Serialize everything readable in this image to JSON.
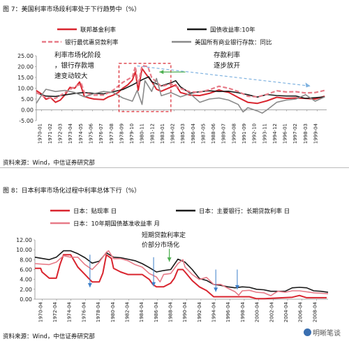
{
  "figure1": {
    "caption": "图 7：美国利率市场段利率处于下行趋势中（%）",
    "source": "资料来源：Wind，中信证券研究部",
    "chart_data": {
      "type": "line",
      "ylim": [
        -5,
        25
      ],
      "yticks": [
        "25.00",
        "20.00",
        "15.00",
        "10.00",
        "5.00",
        "0.00",
        "-5.00"
      ],
      "ytick_values": [
        25,
        20,
        15,
        10,
        5,
        0,
        -5
      ],
      "xlim": [
        1970.0,
        2000.2
      ],
      "xtick_labels": [
        "1970-01",
        "1971-02",
        "1972-03",
        "1973-04",
        "1974-05",
        "1975-06",
        "1976-07",
        "1977-08",
        "1978-09",
        "1979-10",
        "1980-11",
        "1981-12",
        "1983-01",
        "1984-02",
        "1985-03",
        "1986-04",
        "1987-05",
        "1988-06",
        "1989-07",
        "1990-08",
        "1991-09",
        "1992-10",
        "1993-11",
        "1994-12",
        "1996-01",
        "1997-02",
        "1998-03",
        "1999-04"
      ],
      "legend": [
        "联邦基金利率",
        "国债收益率:10年",
        "银行最优惠贷款利率",
        "美国所有商业银行存款：同比"
      ],
      "series": [
        {
          "name": "联邦基金利率",
          "color": "#d9252f",
          "style": "solid",
          "x": [
            1970,
            1970.5,
            1971,
            1971.5,
            1972,
            1972.5,
            1973,
            1973.5,
            1974,
            1974.5,
            1975,
            1975.5,
            1976,
            1977,
            1977.5,
            1978,
            1978.5,
            1979,
            1979.5,
            1980,
            1980.3,
            1980.6,
            1981,
            1981.5,
            1982,
            1982.5,
            1983,
            1984,
            1984.5,
            1985,
            1986,
            1987,
            1988,
            1989,
            1989.5,
            1990,
            1991,
            1992,
            1993,
            1994,
            1995,
            1996,
            1997,
            1998,
            1999,
            2000
          ],
          "y": [
            8.9,
            7.5,
            4.9,
            5.6,
            3.5,
            4.5,
            7.0,
            10.4,
            10.0,
            12.9,
            6.2,
            5.5,
            5.0,
            4.7,
            6.0,
            6.8,
            8.0,
            10.0,
            11.5,
            13.8,
            17.6,
            9.0,
            19.1,
            16.0,
            13.2,
            9.5,
            8.6,
            10.5,
            11.5,
            8.0,
            6.8,
            6.6,
            7.6,
            9.2,
            8.5,
            8.1,
            5.7,
            3.5,
            3.0,
            4.2,
            5.8,
            5.3,
            5.5,
            5.3,
            5.0,
            6.3
          ]
        },
        {
          "name": "国债收益率:10年",
          "color": "#1a1a1a",
          "style": "solid",
          "x": [
            1970,
            1971,
            1972,
            1973,
            1974,
            1975,
            1976,
            1977,
            1978,
            1979,
            1980,
            1981,
            1981.7,
            1982,
            1983,
            1984,
            1984.5,
            1985,
            1986,
            1987,
            1988,
            1989,
            1990,
            1991,
            1992,
            1993,
            1994,
            1995,
            1996,
            1997,
            1998,
            1999,
            2000
          ],
          "y": [
            7.8,
            6.4,
            6.2,
            6.9,
            7.6,
            8.0,
            7.6,
            7.4,
            8.4,
            9.4,
            11.5,
            13.9,
            15.3,
            13.0,
            11.1,
            12.5,
            13.5,
            10.6,
            7.7,
            8.4,
            8.8,
            8.5,
            8.6,
            7.9,
            7.0,
            5.9,
            7.1,
            6.6,
            6.4,
            6.4,
            5.3,
            5.6,
            6.0
          ]
        },
        {
          "name": "银行最优惠贷款利率",
          "color": "#e77b88",
          "style": "dash",
          "x": [
            1970,
            1971,
            1972,
            1973,
            1974,
            1974.7,
            1975,
            1976,
            1977,
            1978,
            1979,
            1980,
            1980.3,
            1980.6,
            1981,
            1981.6,
            1982,
            1983,
            1984,
            1985,
            1986,
            1987,
            1988,
            1989,
            1990,
            1991,
            1992,
            1993,
            1994,
            1995,
            1996,
            1997,
            1998,
            1999,
            2000
          ],
          "y": [
            8.0,
            5.7,
            5.3,
            8.0,
            10.8,
            12.0,
            7.9,
            6.8,
            6.8,
            9.1,
            12.7,
            15.3,
            20.0,
            11.5,
            20.5,
            20.0,
            14.9,
            10.8,
            12.0,
            9.9,
            8.3,
            8.2,
            9.3,
            10.9,
            10.0,
            8.5,
            6.3,
            6.0,
            7.2,
            8.8,
            8.3,
            8.4,
            7.8,
            8.0,
            9.0
          ]
        },
        {
          "name": "美国所有商业银行存款：同比",
          "color": "#8a8a8a",
          "style": "solid",
          "x": [
            1970,
            1970.5,
            1971,
            1972,
            1973,
            1974,
            1975,
            1976,
            1977,
            1978,
            1979,
            1980,
            1980.5,
            1981,
            1981.3,
            1982,
            1982.5,
            1983,
            1984,
            1985,
            1986,
            1987,
            1988,
            1989,
            1990,
            1991,
            1991.5,
            1992,
            1993,
            1993.5,
            1994,
            1995,
            1996,
            1997,
            1998,
            1999,
            2000
          ],
          "y": [
            3.0,
            6.5,
            9.5,
            8.5,
            9.0,
            8.0,
            6.0,
            7.5,
            8.5,
            8.0,
            5.5,
            4.0,
            9.0,
            2.5,
            13.5,
            8.5,
            14.5,
            6.5,
            8.0,
            6.0,
            7.5,
            3.5,
            5.0,
            5.5,
            4.5,
            2.5,
            -1.0,
            1.0,
            -0.5,
            -1.5,
            0.0,
            3.5,
            4.5,
            5.0,
            7.0,
            4.0,
            6.0
          ]
        }
      ],
      "annotations": [
        "利率市场化阶段，银行存款增速变动较大",
        "存款利率逐步放开"
      ]
    }
  },
  "figure2": {
    "caption": "图 8：日本利率市场化过程中利率总体下行（%）",
    "source": "资料来源：Wind，中信证券研究部",
    "chart_data": {
      "type": "line",
      "ylim": [
        0,
        12
      ],
      "yticks": [
        "12.00",
        "10.00",
        "8.00",
        "6.00",
        "4.00",
        "2.00",
        "0.00"
      ],
      "ytick_values": [
        12,
        10,
        8,
        6,
        4,
        2,
        0
      ],
      "xlim": [
        1970.0,
        2011.0
      ],
      "xtick_labels": [
        "1970-04",
        "1972-04",
        "1974-04",
        "1976-04",
        "1978-04",
        "1980-04",
        "1982-04",
        "1984-04",
        "1986-04",
        "1988-04",
        "1990-04",
        "1992-04",
        "1994-04",
        "1996-04",
        "1998-04",
        "2000-04",
        "2002-04",
        "2004-04",
        "2006-04",
        "2008-04"
      ],
      "legend": [
        "日本：贴现率 日",
        "日本：主要银行：长期贷款利率 日",
        "日本：10年期国债基准收益率 月"
      ],
      "series": [
        {
          "name": "日本：贴现率 日",
          "color": "#d9252f",
          "style": "solid",
          "x": [
            1970,
            1970.8,
            1971,
            1972,
            1973,
            1973.5,
            1974,
            1975,
            1975.8,
            1976,
            1977,
            1977.5,
            1978,
            1979,
            1979.5,
            1980,
            1980.7,
            1981,
            1982,
            1983,
            1984,
            1985,
            1986,
            1986.5,
            1987,
            1988,
            1989,
            1989.5,
            1990,
            1990.7,
            1991,
            1992,
            1993,
            1994,
            1995,
            1996,
            2000,
            2001,
            2002,
            2006,
            2007,
            2008,
            2009,
            2010.8
          ],
          "y": [
            6.25,
            6.25,
            5.5,
            4.25,
            4.25,
            7.0,
            9.0,
            9.0,
            7.0,
            6.5,
            5.0,
            4.25,
            3.5,
            3.5,
            5.25,
            9.0,
            8.25,
            6.25,
            5.5,
            5.0,
            5.0,
            5.0,
            4.0,
            3.0,
            2.5,
            2.5,
            3.25,
            4.25,
            6.0,
            6.0,
            5.5,
            3.75,
            2.5,
            1.75,
            0.5,
            0.5,
            0.5,
            0.1,
            0.1,
            0.4,
            0.75,
            0.3,
            0.3,
            0.3
          ]
        },
        {
          "name": "日本：主要银行：长期贷款利率 日",
          "color": "#1a1a1a",
          "style": "solid",
          "x": [
            1970,
            1972,
            1973,
            1974,
            1975,
            1976,
            1977,
            1978,
            1979,
            1980,
            1981,
            1982,
            1983,
            1984,
            1985,
            1986,
            1987,
            1988,
            1989,
            1990,
            1991,
            1992,
            1993,
            1994,
            1995,
            1996,
            1997,
            1998,
            1999,
            2000,
            2001,
            2002,
            2003,
            2004,
            2005,
            2006,
            2007,
            2008,
            2009,
            2010,
            2011
          ],
          "y": [
            8.5,
            8.0,
            8.5,
            9.8,
            9.8,
            9.2,
            8.4,
            7.3,
            7.7,
            9.4,
            8.5,
            8.4,
            8.1,
            7.8,
            7.2,
            6.4,
            5.5,
            5.8,
            6.0,
            8.1,
            7.5,
            6.0,
            4.2,
            3.8,
            3.0,
            2.8,
            2.5,
            2.3,
            2.5,
            2.4,
            2.0,
            1.9,
            1.6,
            1.6,
            1.6,
            2.3,
            2.4,
            2.3,
            1.7,
            1.6,
            1.4
          ]
        },
        {
          "name": "日本：10年期国债基准收益率 月",
          "color": "#e77b88",
          "style": "solid",
          "x": [
            1970,
            1972,
            1973,
            1974,
            1975,
            1976,
            1977,
            1978,
            1979,
            1980,
            1980.3,
            1981,
            1982,
            1983,
            1984,
            1985,
            1986,
            1987,
            1987.5,
            1988,
            1989,
            1990,
            1990.7,
            1991,
            1992,
            1993,
            1994,
            1995,
            1996,
            1997,
            1998,
            1998.5,
            1999,
            2000,
            2001,
            2002,
            2003,
            2003.5,
            2004,
            2005,
            2006,
            2007,
            2008,
            2009,
            2010,
            2011
          ],
          "y": [
            7.2,
            7.0,
            7.5,
            8.8,
            8.5,
            8.5,
            7.0,
            6.0,
            7.5,
            9.5,
            9.8,
            8.2,
            8.2,
            7.8,
            7.0,
            6.5,
            5.2,
            4.5,
            3.5,
            5.0,
            5.2,
            7.2,
            8.0,
            6.5,
            5.0,
            4.0,
            4.4,
            3.0,
            3.0,
            2.2,
            1.5,
            0.8,
            1.7,
            1.8,
            1.4,
            1.3,
            0.7,
            1.2,
            1.6,
            1.4,
            1.7,
            1.7,
            1.5,
            1.3,
            1.2,
            1.1
          ]
        }
      ],
      "annotations": [
        "短期贷款利率定价部分市场化"
      ]
    }
  },
  "watermark": "明晰笔谈"
}
